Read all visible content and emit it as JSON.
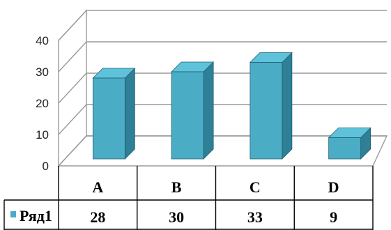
{
  "chart_data": {
    "type": "bar",
    "style": "3d-column-with-data-table",
    "categories": [
      "A",
      "B",
      "C",
      "D"
    ],
    "series": [
      {
        "name": "Ряд1",
        "values": [
          28,
          30,
          33,
          9
        ],
        "color": "#4bacc6"
      }
    ],
    "ylim": [
      0,
      40
    ],
    "yticks": [
      0,
      10,
      20,
      30,
      40
    ],
    "grid": true,
    "legend": "in-data-table",
    "title": "",
    "xlabel": "",
    "ylabel": ""
  }
}
